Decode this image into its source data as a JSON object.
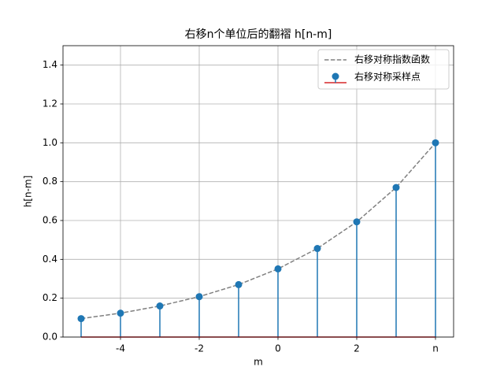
{
  "chart_data": {
    "type": "stem",
    "title": "右移n个单位后的翻褶 h[n-m]",
    "xlabel": "m",
    "ylabel": "h[n-m]",
    "x": [
      -5,
      -4,
      -3,
      -2,
      -1,
      0,
      1,
      2,
      3,
      4
    ],
    "series": [
      {
        "name": "右移对称指数函数",
        "kind": "line",
        "color": "#808080",
        "dashed": true,
        "values": [
          0.095,
          0.123,
          0.16,
          0.208,
          0.27,
          0.351,
          0.456,
          0.593,
          0.77,
          1.0
        ]
      },
      {
        "name": "右移对称采样点",
        "kind": "stem",
        "color": "#1f77b4",
        "baseline_color": "#d62728",
        "values": [
          0.095,
          0.123,
          0.16,
          0.208,
          0.27,
          0.351,
          0.456,
          0.593,
          0.77,
          1.0
        ]
      }
    ],
    "xlim": [
      -5.46,
      4.46
    ],
    "ylim": [
      0,
      1.5
    ],
    "xticks": [
      -4,
      -2,
      0,
      2,
      {
        "value": 4,
        "label": "n"
      }
    ],
    "yticks": [
      {
        "value": 0,
        "label": "0.0"
      },
      0.2,
      0.4,
      0.6,
      0.8,
      {
        "value": 1,
        "label": "1.0"
      },
      1.2,
      1.4
    ],
    "grid": true,
    "legend": "upper right"
  }
}
